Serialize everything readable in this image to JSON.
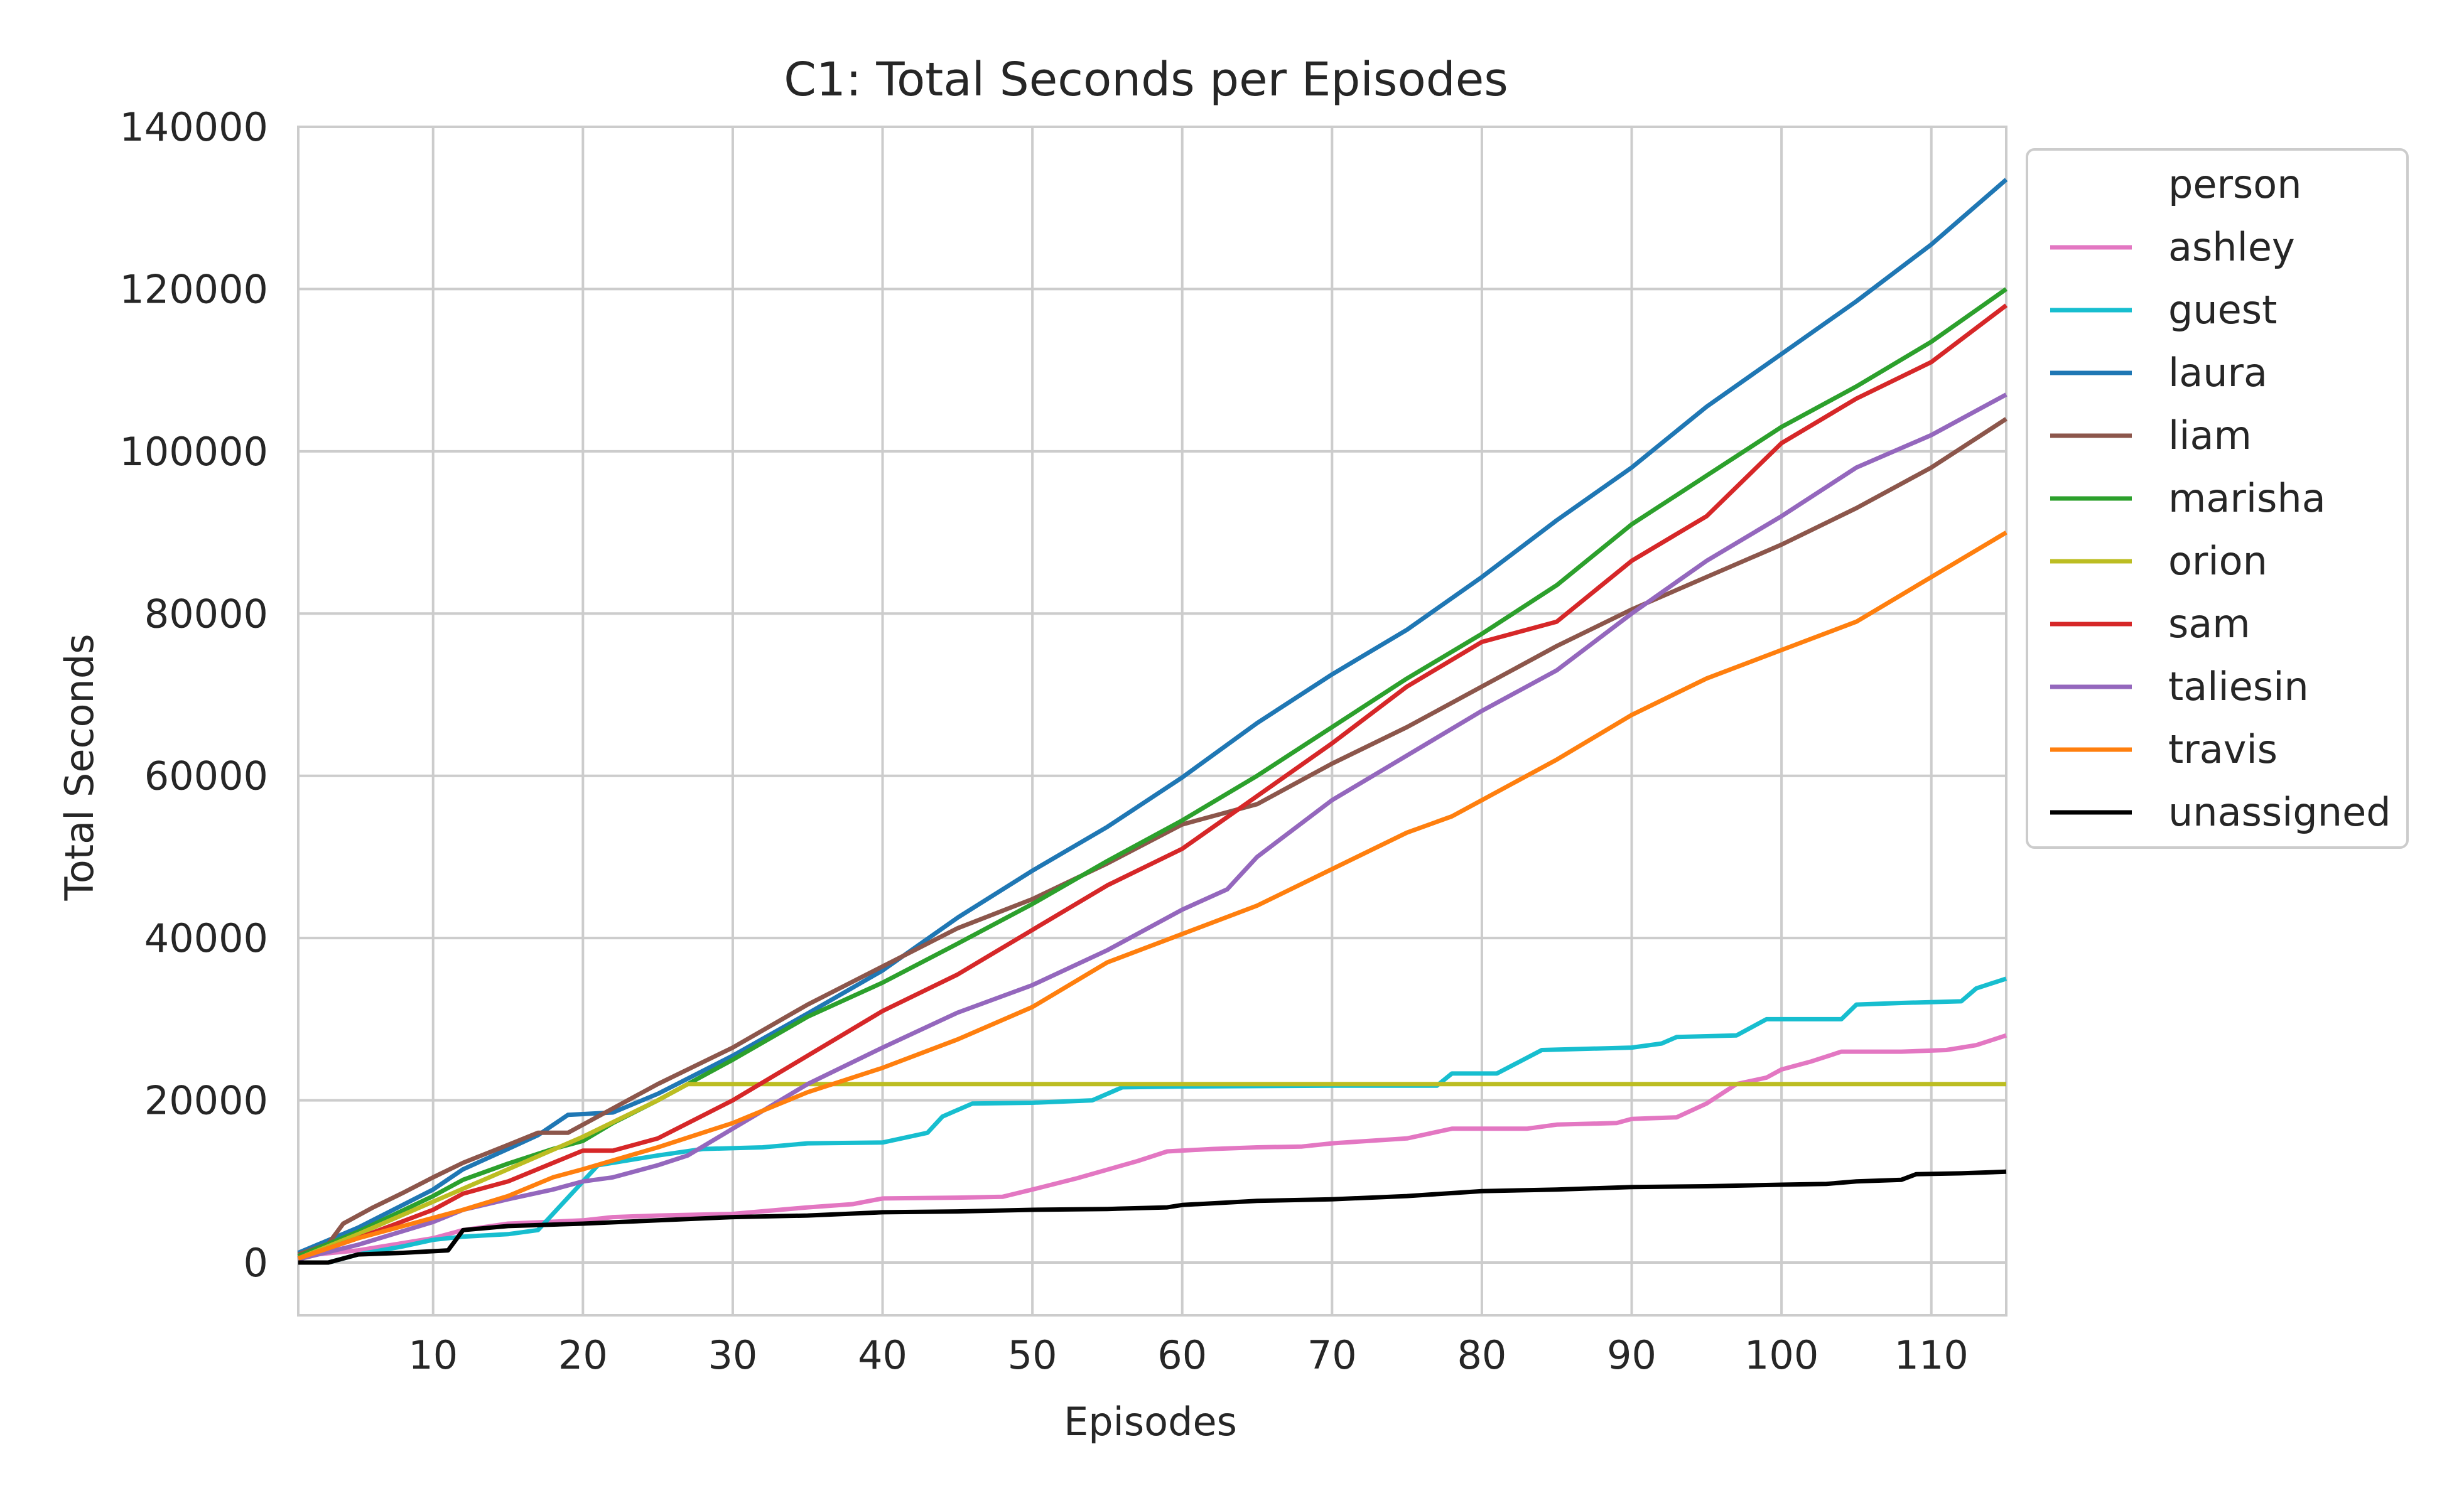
{
  "chart_data": {
    "type": "line",
    "title": "C1: Total Seconds per Episodes",
    "xlabel": "Episodes",
    "ylabel": "Total Seconds",
    "xlim": [
      1,
      115
    ],
    "ylim": [
      -6500,
      140000
    ],
    "xticks": [
      10,
      20,
      30,
      40,
      50,
      60,
      70,
      80,
      90,
      100,
      110
    ],
    "yticks": [
      0,
      20000,
      40000,
      60000,
      80000,
      100000,
      120000,
      140000
    ],
    "grid": true,
    "legend": {
      "title": "person",
      "position": "outside-right"
    },
    "series": [
      {
        "name": "ashley",
        "color": "#e377c2",
        "points": [
          [
            1,
            800
          ],
          [
            5,
            1500
          ],
          [
            10,
            3000
          ],
          [
            12,
            4000
          ],
          [
            15,
            4800
          ],
          [
            20,
            5200
          ],
          [
            22,
            5600
          ],
          [
            25,
            5800
          ],
          [
            30,
            6000
          ],
          [
            35,
            6800
          ],
          [
            38,
            7200
          ],
          [
            40,
            7900
          ],
          [
            45,
            8000
          ],
          [
            48,
            8100
          ],
          [
            50,
            9000
          ],
          [
            53,
            10400
          ],
          [
            57,
            12500
          ],
          [
            59,
            13700
          ],
          [
            62,
            14000
          ],
          [
            65,
            14200
          ],
          [
            68,
            14300
          ],
          [
            70,
            14700
          ],
          [
            75,
            15300
          ],
          [
            78,
            16500
          ],
          [
            83,
            16500
          ],
          [
            85,
            17000
          ],
          [
            89,
            17200
          ],
          [
            90,
            17700
          ],
          [
            93,
            17900
          ],
          [
            95,
            19600
          ],
          [
            97,
            22000
          ],
          [
            99,
            22800
          ],
          [
            100,
            23800
          ],
          [
            102,
            24800
          ],
          [
            104,
            26000
          ],
          [
            108,
            26000
          ],
          [
            111,
            26200
          ],
          [
            113,
            26800
          ],
          [
            115,
            28000
          ]
        ]
      },
      {
        "name": "guest",
        "color": "#17becf",
        "points": [
          [
            1,
            0
          ],
          [
            3,
            0
          ],
          [
            5,
            1000
          ],
          [
            8,
            2000
          ],
          [
            10,
            2800
          ],
          [
            12,
            3200
          ],
          [
            15,
            3500
          ],
          [
            17,
            4000
          ],
          [
            19,
            8000
          ],
          [
            21,
            12000
          ],
          [
            25,
            13200
          ],
          [
            28,
            14000
          ],
          [
            32,
            14200
          ],
          [
            35,
            14700
          ],
          [
            40,
            14800
          ],
          [
            43,
            16000
          ],
          [
            44,
            18000
          ],
          [
            46,
            19600
          ],
          [
            50,
            19700
          ],
          [
            54,
            20000
          ],
          [
            56,
            21600
          ],
          [
            60,
            21700
          ],
          [
            70,
            21800
          ],
          [
            77,
            21800
          ],
          [
            78,
            23300
          ],
          [
            81,
            23300
          ],
          [
            84,
            26200
          ],
          [
            90,
            26500
          ],
          [
            92,
            27000
          ],
          [
            93,
            27800
          ],
          [
            97,
            28000
          ],
          [
            99,
            30000
          ],
          [
            104,
            30000
          ],
          [
            105,
            31800
          ],
          [
            108,
            32000
          ],
          [
            112,
            32200
          ],
          [
            113,
            33800
          ],
          [
            115,
            35000
          ]
        ]
      },
      {
        "name": "laura",
        "color": "#1f77b4",
        "points": [
          [
            1,
            1200
          ],
          [
            5,
            4300
          ],
          [
            10,
            9000
          ],
          [
            12,
            11500
          ],
          [
            15,
            14000
          ],
          [
            17,
            15700
          ],
          [
            19,
            18200
          ],
          [
            22,
            18500
          ],
          [
            25,
            20800
          ],
          [
            30,
            25500
          ],
          [
            35,
            30700
          ],
          [
            40,
            36000
          ],
          [
            45,
            42500
          ],
          [
            50,
            48300
          ],
          [
            55,
            53700
          ],
          [
            60,
            59800
          ],
          [
            65,
            66500
          ],
          [
            70,
            72500
          ],
          [
            75,
            78000
          ],
          [
            80,
            84500
          ],
          [
            85,
            91500
          ],
          [
            90,
            98000
          ],
          [
            95,
            105500
          ],
          [
            100,
            112000
          ],
          [
            105,
            118500
          ],
          [
            110,
            125500
          ],
          [
            115,
            133500
          ]
        ]
      },
      {
        "name": "liam",
        "color": "#8c564b",
        "points": [
          [
            1,
            1000
          ],
          [
            3,
            2300
          ],
          [
            4,
            4800
          ],
          [
            6,
            6800
          ],
          [
            8,
            8600
          ],
          [
            10,
            10500
          ],
          [
            12,
            12300
          ],
          [
            15,
            14500
          ],
          [
            17,
            16000
          ],
          [
            19,
            16000
          ],
          [
            21,
            18000
          ],
          [
            25,
            22000
          ],
          [
            30,
            26500
          ],
          [
            35,
            31800
          ],
          [
            40,
            36500
          ],
          [
            45,
            41200
          ],
          [
            50,
            44800
          ],
          [
            55,
            49200
          ],
          [
            60,
            54000
          ],
          [
            65,
            56500
          ],
          [
            70,
            61500
          ],
          [
            75,
            66000
          ],
          [
            80,
            71000
          ],
          [
            85,
            76000
          ],
          [
            90,
            80500
          ],
          [
            95,
            84500
          ],
          [
            100,
            88500
          ],
          [
            105,
            93000
          ],
          [
            110,
            98000
          ],
          [
            115,
            104000
          ]
        ]
      },
      {
        "name": "marisha",
        "color": "#2ca02c",
        "points": [
          [
            1,
            800
          ],
          [
            5,
            3800
          ],
          [
            10,
            8200
          ],
          [
            12,
            10200
          ],
          [
            15,
            12200
          ],
          [
            18,
            14000
          ],
          [
            20,
            15000
          ],
          [
            22,
            17200
          ],
          [
            25,
            20000
          ],
          [
            30,
            25000
          ],
          [
            35,
            30300
          ],
          [
            40,
            34500
          ],
          [
            45,
            39300
          ],
          [
            50,
            44200
          ],
          [
            55,
            49500
          ],
          [
            60,
            54500
          ],
          [
            65,
            60000
          ],
          [
            70,
            66000
          ],
          [
            75,
            72000
          ],
          [
            80,
            77500
          ],
          [
            85,
            83500
          ],
          [
            90,
            91000
          ],
          [
            95,
            97000
          ],
          [
            100,
            103000
          ],
          [
            105,
            108000
          ],
          [
            110,
            113500
          ],
          [
            115,
            120000
          ]
        ]
      },
      {
        "name": "orion",
        "color": "#bcbd22",
        "points": [
          [
            1,
            500
          ],
          [
            5,
            3500
          ],
          [
            10,
            7500
          ],
          [
            15,
            11500
          ],
          [
            20,
            15500
          ],
          [
            25,
            20000
          ],
          [
            27,
            22000
          ],
          [
            115,
            22000
          ]
        ]
      },
      {
        "name": "sam",
        "color": "#d62728",
        "points": [
          [
            1,
            500
          ],
          [
            5,
            3000
          ],
          [
            10,
            6500
          ],
          [
            12,
            8500
          ],
          [
            15,
            10000
          ],
          [
            20,
            13800
          ],
          [
            22,
            13800
          ],
          [
            25,
            15300
          ],
          [
            30,
            20000
          ],
          [
            35,
            25500
          ],
          [
            40,
            31000
          ],
          [
            45,
            35500
          ],
          [
            50,
            41000
          ],
          [
            55,
            46500
          ],
          [
            60,
            51000
          ],
          [
            65,
            57500
          ],
          [
            70,
            64000
          ],
          [
            75,
            71000
          ],
          [
            80,
            76500
          ],
          [
            83,
            78000
          ],
          [
            85,
            79000
          ],
          [
            90,
            86500
          ],
          [
            95,
            92000
          ],
          [
            100,
            101000
          ],
          [
            105,
            106500
          ],
          [
            110,
            111000
          ],
          [
            115,
            118000
          ]
        ]
      },
      {
        "name": "taliesin",
        "color": "#9467bd",
        "points": [
          [
            1,
            400
          ],
          [
            5,
            2200
          ],
          [
            10,
            5000
          ],
          [
            12,
            6500
          ],
          [
            15,
            7800
          ],
          [
            18,
            9000
          ],
          [
            20,
            10000
          ],
          [
            22,
            10500
          ],
          [
            25,
            12000
          ],
          [
            27,
            13200
          ],
          [
            30,
            16500
          ],
          [
            35,
            22000
          ],
          [
            40,
            26500
          ],
          [
            45,
            30800
          ],
          [
            50,
            34200
          ],
          [
            55,
            38500
          ],
          [
            60,
            43500
          ],
          [
            63,
            46000
          ],
          [
            65,
            50000
          ],
          [
            70,
            57000
          ],
          [
            75,
            62500
          ],
          [
            80,
            68000
          ],
          [
            85,
            73000
          ],
          [
            90,
            80000
          ],
          [
            95,
            86500
          ],
          [
            100,
            92000
          ],
          [
            105,
            98000
          ],
          [
            110,
            102000
          ],
          [
            115,
            107000
          ]
        ]
      },
      {
        "name": "travis",
        "color": "#ff7f0e",
        "points": [
          [
            1,
            500
          ],
          [
            5,
            3000
          ],
          [
            10,
            5500
          ],
          [
            12,
            6500
          ],
          [
            15,
            8200
          ],
          [
            18,
            10500
          ],
          [
            20,
            11500
          ],
          [
            25,
            14200
          ],
          [
            30,
            17200
          ],
          [
            35,
            21000
          ],
          [
            40,
            24000
          ],
          [
            45,
            27500
          ],
          [
            50,
            31500
          ],
          [
            55,
            37000
          ],
          [
            60,
            40500
          ],
          [
            65,
            44000
          ],
          [
            70,
            48500
          ],
          [
            75,
            53000
          ],
          [
            78,
            55000
          ],
          [
            80,
            57000
          ],
          [
            85,
            62000
          ],
          [
            90,
            67500
          ],
          [
            95,
            72000
          ],
          [
            100,
            75500
          ],
          [
            105,
            79000
          ],
          [
            110,
            84500
          ],
          [
            115,
            90000
          ]
        ]
      },
      {
        "name": "unassigned",
        "color": "#000000",
        "points": [
          [
            1,
            0
          ],
          [
            3,
            0
          ],
          [
            5,
            1000
          ],
          [
            8,
            1200
          ],
          [
            11,
            1500
          ],
          [
            12,
            4000
          ],
          [
            15,
            4500
          ],
          [
            20,
            4800
          ],
          [
            25,
            5200
          ],
          [
            30,
            5600
          ],
          [
            35,
            5800
          ],
          [
            40,
            6200
          ],
          [
            45,
            6300
          ],
          [
            50,
            6500
          ],
          [
            55,
            6600
          ],
          [
            59,
            6800
          ],
          [
            60,
            7100
          ],
          [
            65,
            7600
          ],
          [
            70,
            7800
          ],
          [
            75,
            8200
          ],
          [
            80,
            8800
          ],
          [
            85,
            9000
          ],
          [
            90,
            9300
          ],
          [
            95,
            9400
          ],
          [
            100,
            9600
          ],
          [
            103,
            9700
          ],
          [
            105,
            10000
          ],
          [
            108,
            10200
          ],
          [
            109,
            10900
          ],
          [
            112,
            11000
          ],
          [
            115,
            11200
          ]
        ]
      }
    ]
  }
}
